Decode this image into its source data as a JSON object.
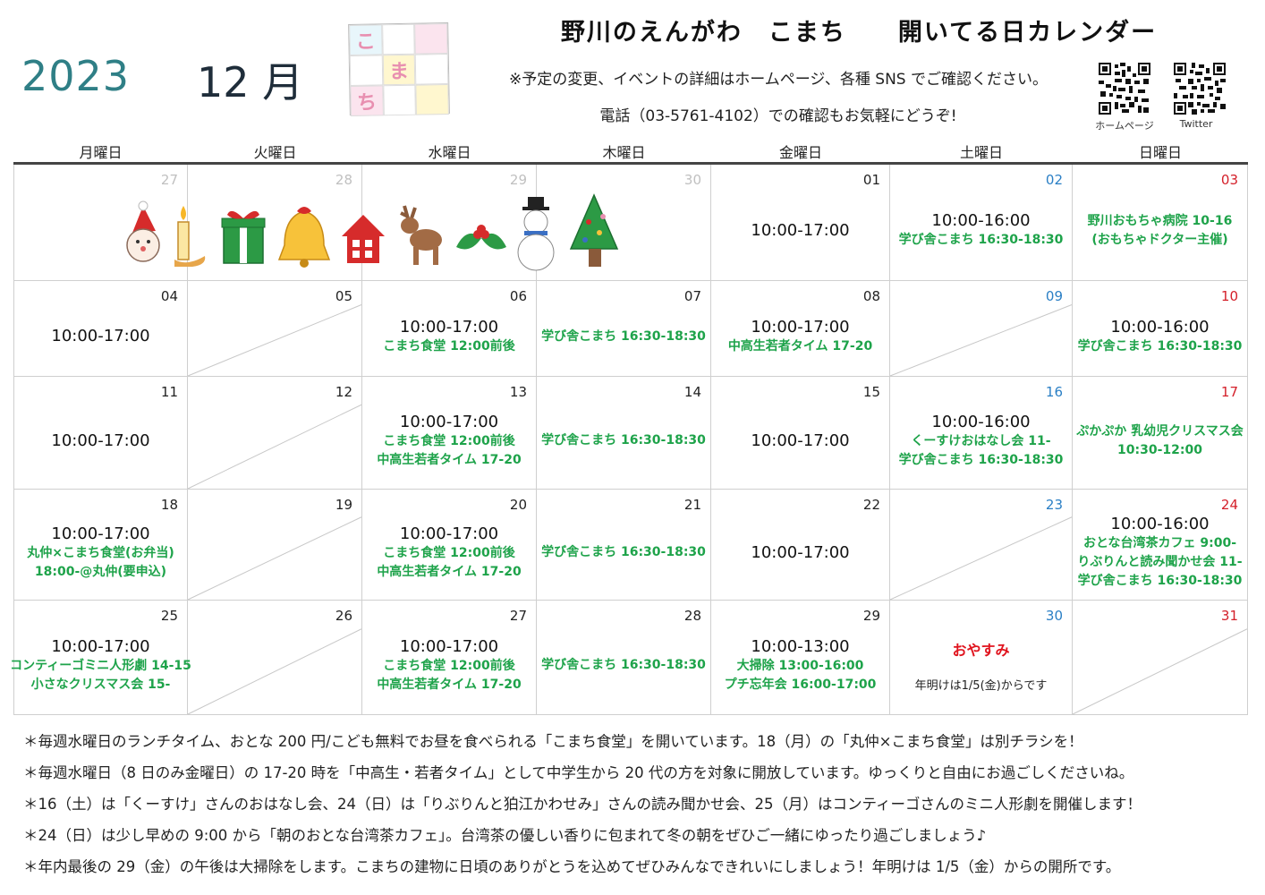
{
  "header": {
    "year": "2023",
    "month": "12 月",
    "title": "野川のえんがわ　こまち　　開いてる日カレンダー",
    "notice1": "※予定の変更、イベントの詳細はホームページ、各種 SNS でご確認ください。",
    "notice2": "電話（03-5761-4102）での確認もお気軽にどうぞ!",
    "logo_chars": [
      "こ",
      "ま",
      "ち"
    ],
    "qr_codes": [
      {
        "label": "ホームページ",
        "icon": "qr-code-icon"
      },
      {
        "label": "Twitter",
        "icon": "qr-code-icon"
      }
    ]
  },
  "weekdays": [
    "月曜日",
    "火曜日",
    "水曜日",
    "木曜日",
    "金曜日",
    "土曜日",
    "日曜日"
  ],
  "colors": {
    "saturday": "#2a7fc5",
    "sunday": "#d4202a",
    "event": "#1ea34a",
    "closed": "#e0141e",
    "year": "#2f7f86"
  },
  "decorations": [
    "santa-icon",
    "candle-icon",
    "gift-icon",
    "bell-icon",
    "house-icon",
    "reindeer-icon",
    "holly-icon",
    "snowman-icon",
    "christmas-tree-icon"
  ],
  "weeks": [
    [
      {
        "day": "27",
        "type": "prev"
      },
      {
        "day": "28",
        "type": "prev"
      },
      {
        "day": "29",
        "type": "prev"
      },
      {
        "day": "30",
        "type": "prev"
      },
      {
        "day": "01",
        "type": "weekday",
        "hours": "10:00-17:00",
        "events": []
      },
      {
        "day": "02",
        "type": "sat",
        "hours": "10:00-16:00",
        "events": [
          "学び舎こまち 16:30-18:30"
        ]
      },
      {
        "day": "03",
        "type": "sun",
        "hours": "",
        "events": [
          "野川おもちゃ病院 10-16",
          "(おもちゃドクター主催)"
        ]
      }
    ],
    [
      {
        "day": "04",
        "type": "weekday",
        "hours": "10:00-17:00",
        "events": []
      },
      {
        "day": "05",
        "type": "weekday",
        "closed": true
      },
      {
        "day": "06",
        "type": "weekday",
        "hours": "10:00-17:00",
        "events": [
          "こまち食堂 12:00前後"
        ]
      },
      {
        "day": "07",
        "type": "weekday",
        "hours": "",
        "events": [
          "学び舎こまち 16:30-18:30"
        ]
      },
      {
        "day": "08",
        "type": "weekday",
        "hours": "10:00-17:00",
        "events": [
          "中高生若者タイム 17-20"
        ]
      },
      {
        "day": "09",
        "type": "sat",
        "closed": true
      },
      {
        "day": "10",
        "type": "sun",
        "hours": "10:00-16:00",
        "events": [
          "学び舎こまち 16:30-18:30"
        ]
      }
    ],
    [
      {
        "day": "11",
        "type": "weekday",
        "hours": "10:00-17:00",
        "events": []
      },
      {
        "day": "12",
        "type": "weekday",
        "closed": true
      },
      {
        "day": "13",
        "type": "weekday",
        "hours": "10:00-17:00",
        "events": [
          "こまち食堂 12:00前後",
          "中高生若者タイム 17-20"
        ]
      },
      {
        "day": "14",
        "type": "weekday",
        "hours": "",
        "events": [
          "学び舎こまち 16:30-18:30"
        ]
      },
      {
        "day": "15",
        "type": "weekday",
        "hours": "10:00-17:00",
        "events": []
      },
      {
        "day": "16",
        "type": "sat",
        "hours": "10:00-16:00",
        "events": [
          "くーすけおはなし会 11-",
          "学び舎こまち 16:30-18:30"
        ]
      },
      {
        "day": "17",
        "type": "sun",
        "hours": "",
        "events": [
          "ぷかぷか 乳幼児クリスマス会",
          "10:30-12:00"
        ]
      }
    ],
    [
      {
        "day": "18",
        "type": "weekday",
        "hours": "10:00-17:00",
        "events": [
          "丸仲×こまち食堂(お弁当)",
          "18:00-@丸仲(要申込)"
        ]
      },
      {
        "day": "19",
        "type": "weekday",
        "closed": true
      },
      {
        "day": "20",
        "type": "weekday",
        "hours": "10:00-17:00",
        "events": [
          "こまち食堂 12:00前後",
          "中高生若者タイム 17-20"
        ]
      },
      {
        "day": "21",
        "type": "weekday",
        "hours": "",
        "events": [
          "学び舎こまち 16:30-18:30"
        ]
      },
      {
        "day": "22",
        "type": "weekday",
        "hours": "10:00-17:00",
        "events": []
      },
      {
        "day": "23",
        "type": "sat",
        "closed": true
      },
      {
        "day": "24",
        "type": "sun",
        "hours": "10:00-16:00",
        "events": [
          "おとな台湾茶カフェ 9:00-",
          "りぶりんと読み聞かせ会 11-",
          "学び舎こまち 16:30-18:30"
        ]
      }
    ],
    [
      {
        "day": "25",
        "type": "weekday",
        "hours": "10:00-17:00",
        "events": [
          "コンティーゴミニ人形劇 14-15",
          "小さなクリスマス会 15-"
        ]
      },
      {
        "day": "26",
        "type": "weekday",
        "closed": true
      },
      {
        "day": "27",
        "type": "weekday",
        "hours": "10:00-17:00",
        "events": [
          "こまち食堂 12:00前後",
          "中高生若者タイム 17-20"
        ]
      },
      {
        "day": "28",
        "type": "weekday",
        "hours": "",
        "events": [
          "学び舎こまち 16:30-18:30"
        ]
      },
      {
        "day": "29",
        "type": "weekday",
        "hours": "10:00-13:00",
        "events": [
          "大掃除 13:00-16:00",
          "プチ忘年会 16:00-17:00"
        ]
      },
      {
        "day": "30",
        "type": "sat",
        "rest": "おやすみ",
        "note": "年明けは1/5(金)からです"
      },
      {
        "day": "31",
        "type": "sun",
        "closed": true
      }
    ]
  ],
  "footnotes": [
    "＊毎週水曜日のランチタイム、おとな 200 円/こども無料でお昼を食べられる「こまち食堂」を開いています。18（月）の「丸仲×こまち食堂」は別チラシを！",
    "＊毎週水曜日（8 日のみ金曜日）の 17-20 時を「中高生・若者タイム」として中学生から 20 代の方を対象に開放しています。ゆっくりと自由にお過ごしくださいね。",
    "＊16（土）は「くーすけ」さんのおはなし会、24（日）は「りぶりんと狛江かわせみ」さんの読み聞かせ会、25（月）はコンティーゴさんのミニ人形劇を開催します！",
    "＊24（日）は少し早めの 9:00 から「朝のおとな台湾茶カフェ」。台湾茶の優しい香りに包まれて冬の朝をぜひご一緒にゆったり過ごしましょう♪",
    "＊年内最後の 29（金）の午後は大掃除をします。こまちの建物に日頃のありがとうを込めてぜひみんなできれいにしましょう！年明けは 1/5（金）からの開所です。"
  ]
}
